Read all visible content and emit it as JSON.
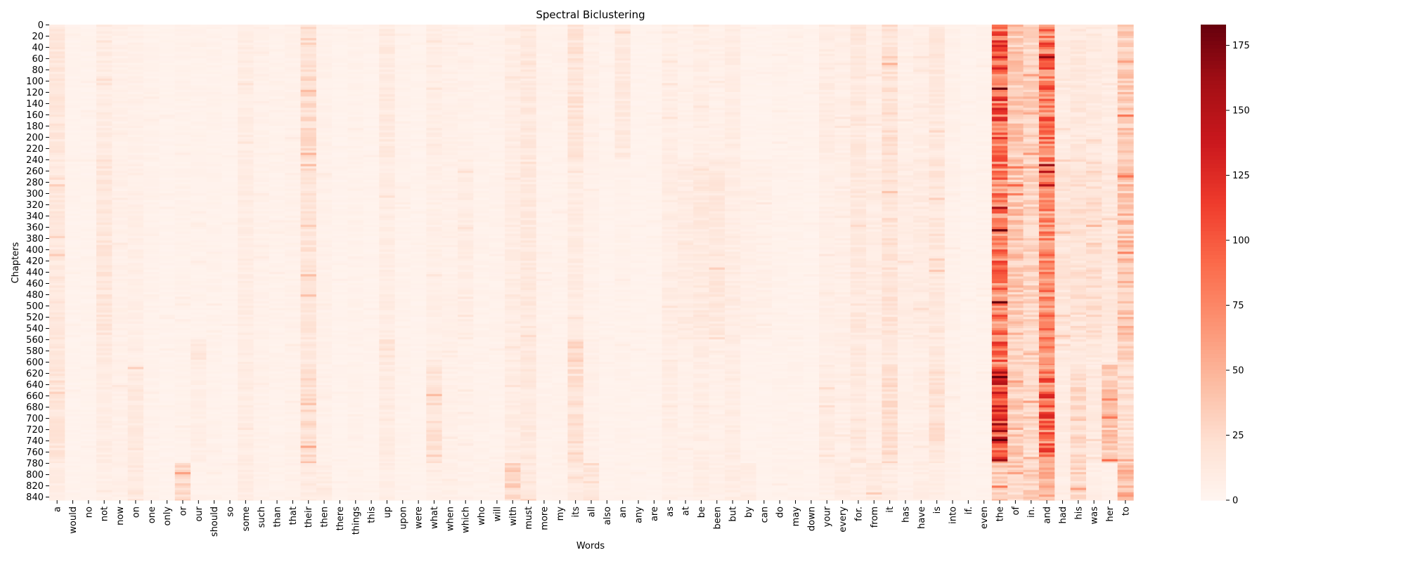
{
  "chart_data": {
    "type": "heatmap",
    "title": "Spectral Biclustering",
    "xlabel": "Words",
    "ylabel": "Chapters",
    "colormap": "Reds",
    "color_min": "#fff5f0",
    "color_max": "#67000d",
    "colorbar_range": [
      0,
      183
    ],
    "colorbar_ticks": [
      0,
      25,
      50,
      75,
      100,
      125,
      150,
      175
    ],
    "n_rows": 846,
    "y_ticks": [
      0,
      20,
      40,
      60,
      80,
      100,
      120,
      140,
      160,
      180,
      200,
      220,
      240,
      260,
      280,
      300,
      320,
      340,
      360,
      380,
      400,
      420,
      440,
      460,
      480,
      500,
      520,
      540,
      560,
      580,
      600,
      620,
      640,
      660,
      680,
      700,
      720,
      740,
      760,
      780,
      800,
      820,
      840
    ],
    "columns": [
      "a",
      "would",
      "no",
      "not",
      "now",
      "on",
      "one",
      "only",
      "or",
      "our",
      "should",
      "so",
      "some",
      "such",
      "than",
      "that",
      "their",
      "then",
      "there",
      "things",
      "this",
      "up",
      "upon",
      "were",
      "what",
      "when",
      "which",
      "who",
      "will",
      "with",
      "must",
      "more",
      "my",
      "its",
      "all",
      "also",
      "an",
      "any",
      "are",
      "as",
      "at",
      "be",
      "been",
      "but",
      "by",
      "can",
      "do",
      "may",
      "down",
      "your",
      "every",
      "for.",
      "from",
      "it",
      "has",
      "have",
      "is",
      "into",
      "if.",
      "even",
      "the",
      "of",
      "in.",
      "and",
      "had",
      "his",
      "was",
      "her",
      "to"
    ],
    "row_cluster_bounds": [
      0,
      240,
      560,
      605,
      780,
      846
    ],
    "block_means": [
      [
        15,
        3,
        3,
        10,
        6,
        6,
        4,
        3,
        4,
        4,
        4,
        3,
        9,
        5,
        4,
        5,
        23,
        5,
        3,
        4,
        3,
        12,
        4,
        3,
        8,
        6,
        5,
        4,
        4,
        9,
        13,
        4,
        4,
        18,
        6,
        3,
        12,
        3,
        3,
        8,
        5,
        8,
        6,
        9,
        3,
        3,
        4,
        4,
        3,
        10,
        7,
        14,
        7,
        20,
        6,
        8,
        14,
        5,
        3,
        4,
        95,
        38,
        30,
        85,
        10,
        14,
        12,
        9,
        34
      ],
      [
        14,
        3,
        3,
        16,
        6,
        7,
        4,
        3,
        4,
        4,
        4,
        3,
        9,
        5,
        4,
        5,
        18,
        5,
        3,
        4,
        3,
        9,
        4,
        3,
        7,
        6,
        9,
        4,
        4,
        9,
        13,
        4,
        4,
        10,
        5,
        3,
        4,
        3,
        3,
        9,
        10,
        13,
        14,
        9,
        7,
        6,
        4,
        4,
        3,
        7,
        7,
        14,
        10,
        18,
        9,
        11,
        16,
        5,
        3,
        4,
        80,
        38,
        30,
        70,
        18,
        20,
        22,
        14,
        40
      ],
      [
        13,
        3,
        3,
        12,
        6,
        6,
        4,
        3,
        4,
        14,
        4,
        3,
        9,
        5,
        4,
        5,
        14,
        5,
        3,
        4,
        3,
        16,
        4,
        3,
        7,
        6,
        5,
        4,
        4,
        9,
        13,
        4,
        4,
        25,
        6,
        3,
        4,
        3,
        3,
        8,
        6,
        9,
        6,
        9,
        3,
        3,
        4,
        4,
        3,
        6,
        7,
        13,
        7,
        14,
        6,
        8,
        13,
        5,
        3,
        4,
        85,
        35,
        28,
        75,
        12,
        16,
        14,
        10,
        30
      ],
      [
        16,
        3,
        3,
        9,
        6,
        13,
        4,
        3,
        4,
        7,
        4,
        3,
        9,
        5,
        4,
        5,
        22,
        5,
        3,
        4,
        3,
        10,
        4,
        3,
        18,
        6,
        5,
        4,
        4,
        9,
        13,
        4,
        4,
        20,
        6,
        3,
        4,
        3,
        3,
        8,
        5,
        8,
        6,
        9,
        3,
        3,
        4,
        4,
        3,
        10,
        7,
        14,
        7,
        22,
        6,
        8,
        20,
        5,
        3,
        4,
        115,
        35,
        24,
        90,
        10,
        25,
        12,
        38,
        22
      ],
      [
        10,
        3,
        3,
        6,
        6,
        14,
        4,
        3,
        24,
        4,
        4,
        3,
        9,
        5,
        4,
        5,
        9,
        9,
        3,
        4,
        3,
        8,
        4,
        3,
        6,
        6,
        5,
        4,
        4,
        28,
        13,
        4,
        4,
        12,
        15,
        3,
        4,
        3,
        3,
        6,
        5,
        8,
        6,
        9,
        9,
        3,
        4,
        4,
        3,
        6,
        10,
        9,
        14,
        10,
        6,
        8,
        8,
        5,
        3,
        4,
        40,
        25,
        30,
        45,
        8,
        28,
        8,
        5,
        45
      ]
    ]
  }
}
